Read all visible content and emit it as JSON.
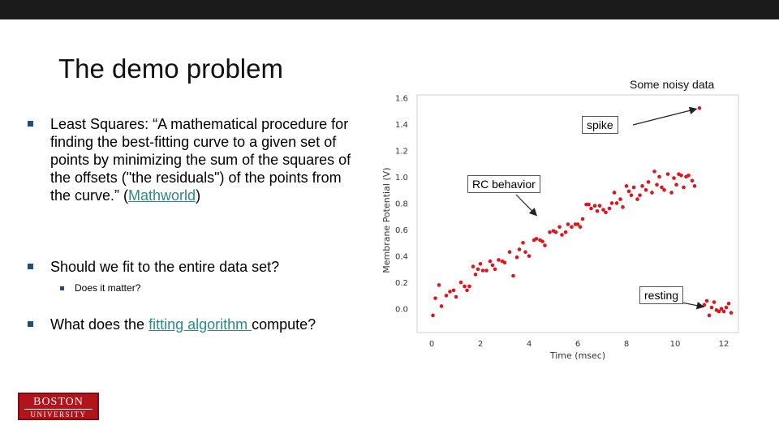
{
  "slide": {
    "title": "The demo problem",
    "bullets": [
      {
        "prefix": "Least Squares:  “A mathematical procedure for finding the best-fitting curve to a given set of points by minimizing the sum of the squares of the offsets (\"the residuals\") of the points from the curve.” (",
        "link": "Mathworld",
        "suffix": ")"
      },
      {
        "text": "Should we fit to the entire data set?"
      },
      {
        "text": "Does it matter?"
      },
      {
        "prefix": "What does the ",
        "link": "fitting algorithm ",
        "suffix": "compute?"
      }
    ],
    "logo": {
      "line1": "BOSTON",
      "line2": "UNIVERSITY"
    },
    "colors": {
      "accent": "#1f4e79",
      "link": "#2a8a8a",
      "logo": "#b1141a",
      "points": "#e0141c"
    }
  },
  "chart_data": {
    "type": "scatter",
    "title": "Some noisy data",
    "xlabel": "Time (msec)",
    "ylabel": "Membrane Potential (V)",
    "xlim": [
      -0.6,
      12.6
    ],
    "ylim": [
      -0.18,
      1.62
    ],
    "xticks": [
      0,
      2,
      4,
      6,
      8,
      10,
      12
    ],
    "yticks": [
      0.0,
      0.2,
      0.4,
      0.6,
      0.8,
      1.0,
      1.2,
      1.4,
      1.6
    ],
    "annotations": [
      {
        "text": "spike",
        "target": [
          11.0,
          1.52
        ]
      },
      {
        "text": "RC behavior",
        "target": [
          4.4,
          0.69
        ]
      },
      {
        "text": "resting",
        "target": [
          11.3,
          0.01
        ]
      }
    ],
    "points": [
      [
        0.05,
        -0.05
      ],
      [
        0.15,
        0.08
      ],
      [
        0.3,
        0.18
      ],
      [
        0.4,
        0.02
      ],
      [
        0.6,
        0.1
      ],
      [
        0.75,
        0.13
      ],
      [
        0.9,
        0.14
      ],
      [
        1.0,
        0.09
      ],
      [
        1.2,
        0.2
      ],
      [
        1.35,
        0.17
      ],
      [
        1.45,
        0.14
      ],
      [
        1.55,
        0.17
      ],
      [
        1.7,
        0.32
      ],
      [
        1.8,
        0.26
      ],
      [
        1.9,
        0.3
      ],
      [
        2.0,
        0.34
      ],
      [
        2.1,
        0.29
      ],
      [
        2.25,
        0.29
      ],
      [
        2.4,
        0.36
      ],
      [
        2.5,
        0.33
      ],
      [
        2.6,
        0.3
      ],
      [
        2.75,
        0.37
      ],
      [
        2.9,
        0.36
      ],
      [
        3.0,
        0.35
      ],
      [
        3.2,
        0.43
      ],
      [
        3.35,
        0.25
      ],
      [
        3.5,
        0.39
      ],
      [
        3.6,
        0.45
      ],
      [
        3.75,
        0.5
      ],
      [
        3.85,
        0.43
      ],
      [
        4.0,
        0.4
      ],
      [
        4.2,
        0.52
      ],
      [
        4.3,
        0.53
      ],
      [
        4.45,
        0.52
      ],
      [
        4.55,
        0.51
      ],
      [
        4.65,
        0.48
      ],
      [
        4.85,
        0.58
      ],
      [
        5.0,
        0.59
      ],
      [
        5.1,
        0.58
      ],
      [
        5.25,
        0.62
      ],
      [
        5.35,
        0.56
      ],
      [
        5.5,
        0.58
      ],
      [
        5.6,
        0.64
      ],
      [
        5.75,
        0.62
      ],
      [
        5.9,
        0.64
      ],
      [
        6.0,
        0.64
      ],
      [
        6.1,
        0.62
      ],
      [
        6.2,
        0.68
      ],
      [
        6.35,
        0.79
      ],
      [
        6.45,
        0.79
      ],
      [
        6.55,
        0.76
      ],
      [
        6.7,
        0.78
      ],
      [
        6.8,
        0.74
      ],
      [
        6.9,
        0.78
      ],
      [
        7.05,
        0.75
      ],
      [
        7.15,
        0.73
      ],
      [
        7.3,
        0.76
      ],
      [
        7.4,
        0.8
      ],
      [
        7.5,
        0.88
      ],
      [
        7.6,
        0.8
      ],
      [
        7.75,
        0.83
      ],
      [
        7.85,
        0.77
      ],
      [
        8.0,
        0.93
      ],
      [
        8.1,
        0.89
      ],
      [
        8.2,
        0.86
      ],
      [
        8.3,
        0.92
      ],
      [
        8.45,
        0.83
      ],
      [
        8.55,
        0.86
      ],
      [
        8.65,
        0.93
      ],
      [
        8.8,
        0.9
      ],
      [
        8.9,
        0.96
      ],
      [
        9.05,
        0.88
      ],
      [
        9.15,
        1.04
      ],
      [
        9.25,
        0.94
      ],
      [
        9.35,
        1.0
      ],
      [
        9.45,
        0.92
      ],
      [
        9.55,
        0.9
      ],
      [
        9.7,
        1.02
      ],
      [
        9.85,
        0.88
      ],
      [
        9.95,
        0.99
      ],
      [
        10.05,
        0.94
      ],
      [
        10.15,
        1.02
      ],
      [
        10.25,
        1.01
      ],
      [
        10.35,
        0.92
      ],
      [
        10.45,
        1.0
      ],
      [
        10.55,
        1.01
      ],
      [
        10.7,
        0.97
      ],
      [
        10.8,
        0.93
      ],
      [
        11.0,
        1.52
      ],
      [
        11.2,
        0.03
      ],
      [
        11.3,
        0.06
      ],
      [
        11.4,
        -0.05
      ],
      [
        11.5,
        0.01
      ],
      [
        11.6,
        0.05
      ],
      [
        11.7,
        -0.01
      ],
      [
        11.8,
        -0.02
      ],
      [
        11.9,
        0.0
      ],
      [
        12.0,
        -0.02
      ],
      [
        12.1,
        0.01
      ],
      [
        12.2,
        0.04
      ],
      [
        12.3,
        -0.03
      ]
    ]
  }
}
